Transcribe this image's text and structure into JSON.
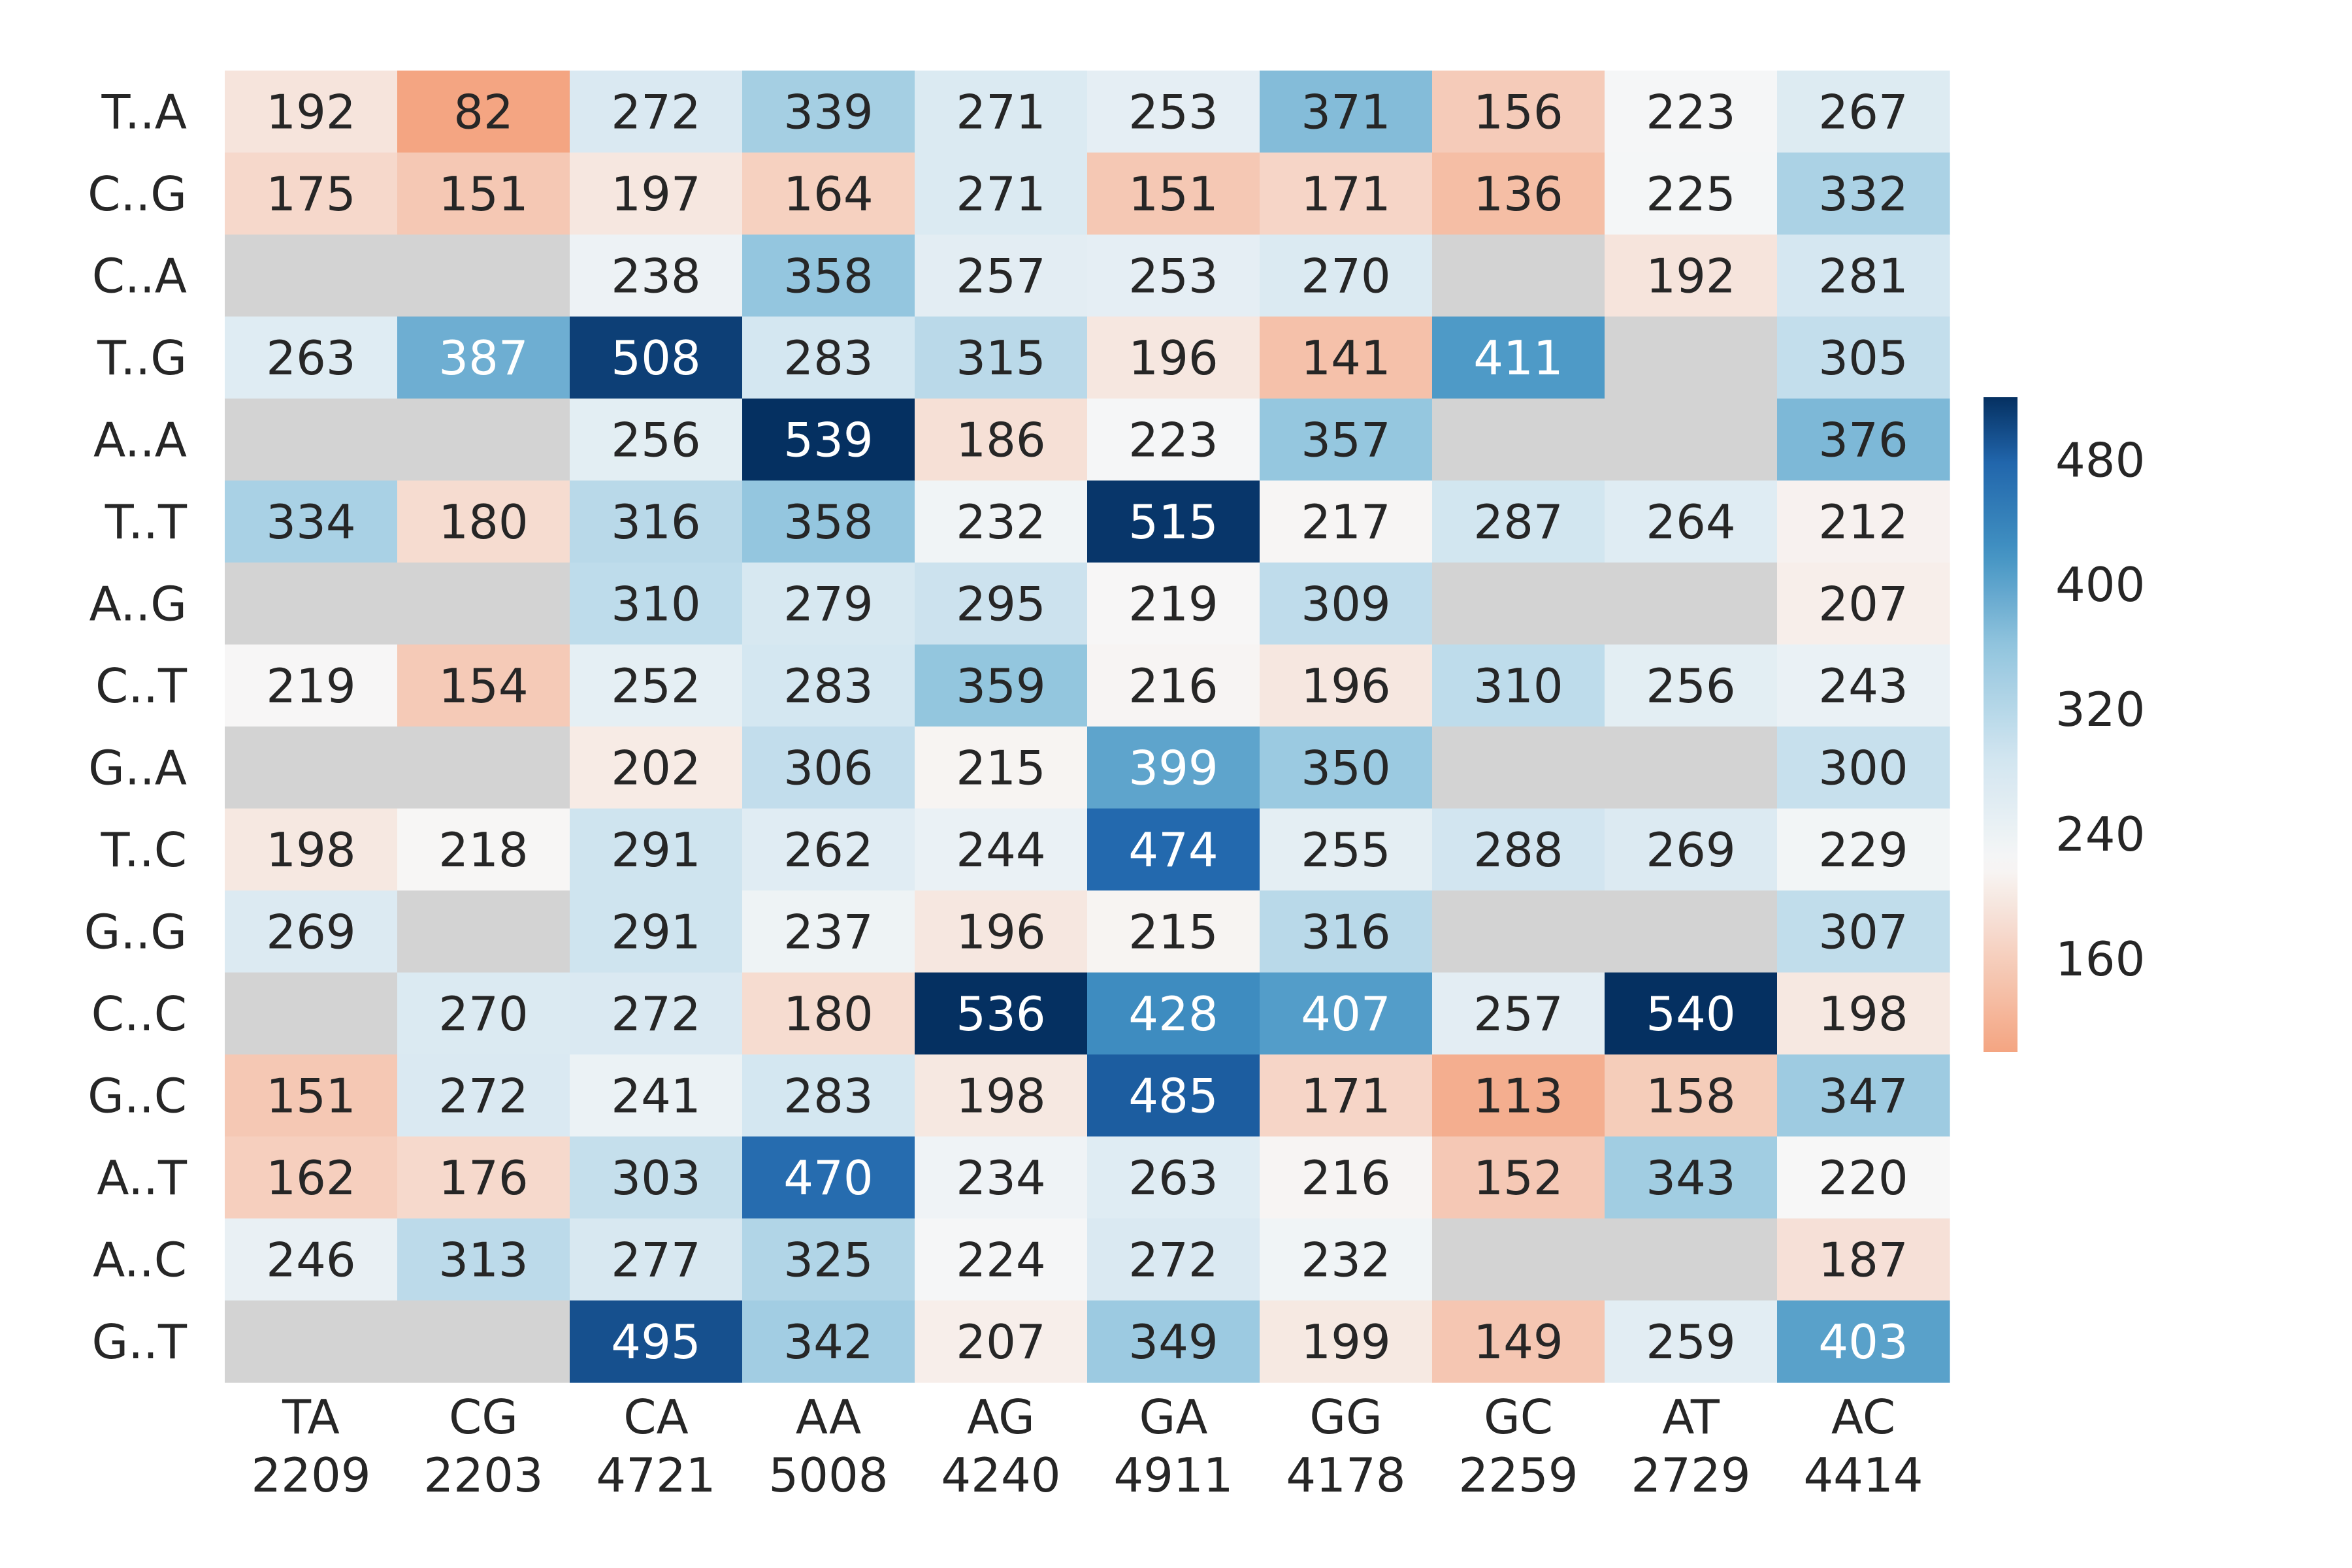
{
  "chart_data": {
    "type": "heatmap",
    "title": "",
    "xlabel": "",
    "ylabel": "",
    "columns": [
      {
        "label": "TA",
        "count": "2209"
      },
      {
        "label": "CG",
        "count": "2203"
      },
      {
        "label": "CA",
        "count": "4721"
      },
      {
        "label": "AA",
        "count": "5008"
      },
      {
        "label": "AG",
        "count": "4240"
      },
      {
        "label": "GA",
        "count": "4911"
      },
      {
        "label": "GG",
        "count": "4178"
      },
      {
        "label": "GC",
        "count": "2259"
      },
      {
        "label": "AT",
        "count": "2729"
      },
      {
        "label": "AC",
        "count": "4414"
      }
    ],
    "rows": [
      "T..A",
      "C..G",
      "C..A",
      "T..G",
      "A..A",
      "T..T",
      "A..G",
      "C..T",
      "G..A",
      "T..C",
      "G..G",
      "C..C",
      "G..C",
      "A..T",
      "A..C",
      "G..T"
    ],
    "values": [
      [
        192,
        82,
        272,
        339,
        271,
        253,
        371,
        156,
        223,
        267
      ],
      [
        175,
        151,
        197,
        164,
        271,
        151,
        171,
        136,
        225,
        332
      ],
      [
        null,
        null,
        238,
        358,
        257,
        253,
        270,
        null,
        192,
        281
      ],
      [
        263,
        387,
        508,
        283,
        315,
        196,
        141,
        411,
        null,
        305
      ],
      [
        null,
        null,
        256,
        539,
        186,
        223,
        357,
        null,
        null,
        376
      ],
      [
        334,
        180,
        316,
        358,
        232,
        515,
        217,
        287,
        264,
        212
      ],
      [
        null,
        null,
        310,
        279,
        295,
        219,
        309,
        null,
        null,
        207
      ],
      [
        219,
        154,
        252,
        283,
        359,
        216,
        196,
        310,
        256,
        243
      ],
      [
        null,
        null,
        202,
        306,
        215,
        399,
        350,
        null,
        null,
        300
      ],
      [
        198,
        218,
        291,
        262,
        244,
        474,
        255,
        288,
        269,
        229
      ],
      [
        269,
        null,
        291,
        237,
        196,
        215,
        316,
        null,
        null,
        307
      ],
      [
        null,
        270,
        272,
        180,
        536,
        428,
        407,
        257,
        540,
        198
      ],
      [
        151,
        272,
        241,
        283,
        198,
        485,
        171,
        113,
        158,
        347
      ],
      [
        162,
        176,
        303,
        470,
        234,
        263,
        216,
        152,
        343,
        220
      ],
      [
        246,
        313,
        277,
        325,
        224,
        272,
        232,
        null,
        null,
        187
      ],
      [
        null,
        null,
        495,
        342,
        207,
        349,
        199,
        149,
        259,
        403
      ]
    ],
    "colorbar": {
      "min": 100,
      "max": 520,
      "center": 240,
      "ticks": [
        160,
        240,
        320,
        400,
        480
      ],
      "colormap": "RdBu (diverging)",
      "location": "right"
    },
    "missing_color": "#d3d3d3",
    "grid": false
  }
}
